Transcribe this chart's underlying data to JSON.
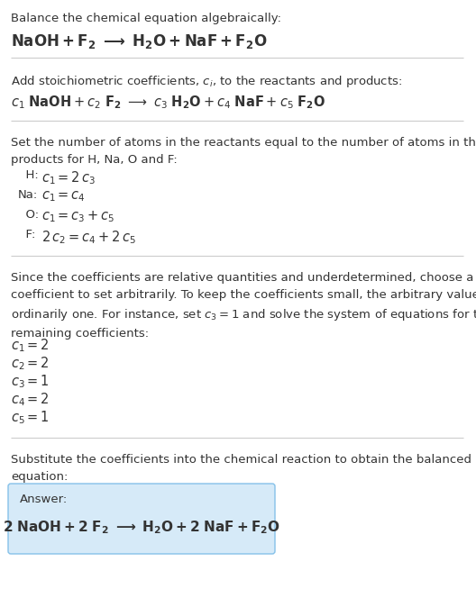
{
  "bg_color": "#ffffff",
  "text_color": "#333333",
  "section1_title": "Balance the chemical equation algebraically:",
  "section2_title": "Add stoichiometric coefficients, $c_i$, to the reactants and products:",
  "section3_title": "Set the number of atoms in the reactants equal to the number of atoms in the\nproducts for H, Na, O and F:",
  "section3_lines": [
    [
      "  H:",
      "$c_1 = 2\\,c_3$"
    ],
    [
      "Na:",
      "$c_1 = c_4$"
    ],
    [
      "  O:",
      "$c_1 = c_3 + c_5$"
    ],
    [
      "  F:",
      "$2\\,c_2 = c_4 + 2\\,c_5$"
    ]
  ],
  "section4_title": "Since the coefficients are relative quantities and underdetermined, choose a\ncoefficient to set arbitrarily. To keep the coefficients small, the arbitrary value is\nordinarily one. For instance, set $c_3 = 1$ and solve the system of equations for the\nremaining coefficients:",
  "section4_lines": [
    "$c_1 = 2$",
    "$c_2 = 2$",
    "$c_3 = 1$",
    "$c_4 = 2$",
    "$c_5 = 1$"
  ],
  "section5_title": "Substitute the coefficients into the chemical reaction to obtain the balanced\nequation:",
  "answer_label": "Answer:",
  "answer_box_color": "#d6eaf8",
  "answer_box_border": "#85c1e9",
  "divider_color": "#cccccc",
  "font_size_body": 9.5,
  "font_size_eq": 10.5
}
